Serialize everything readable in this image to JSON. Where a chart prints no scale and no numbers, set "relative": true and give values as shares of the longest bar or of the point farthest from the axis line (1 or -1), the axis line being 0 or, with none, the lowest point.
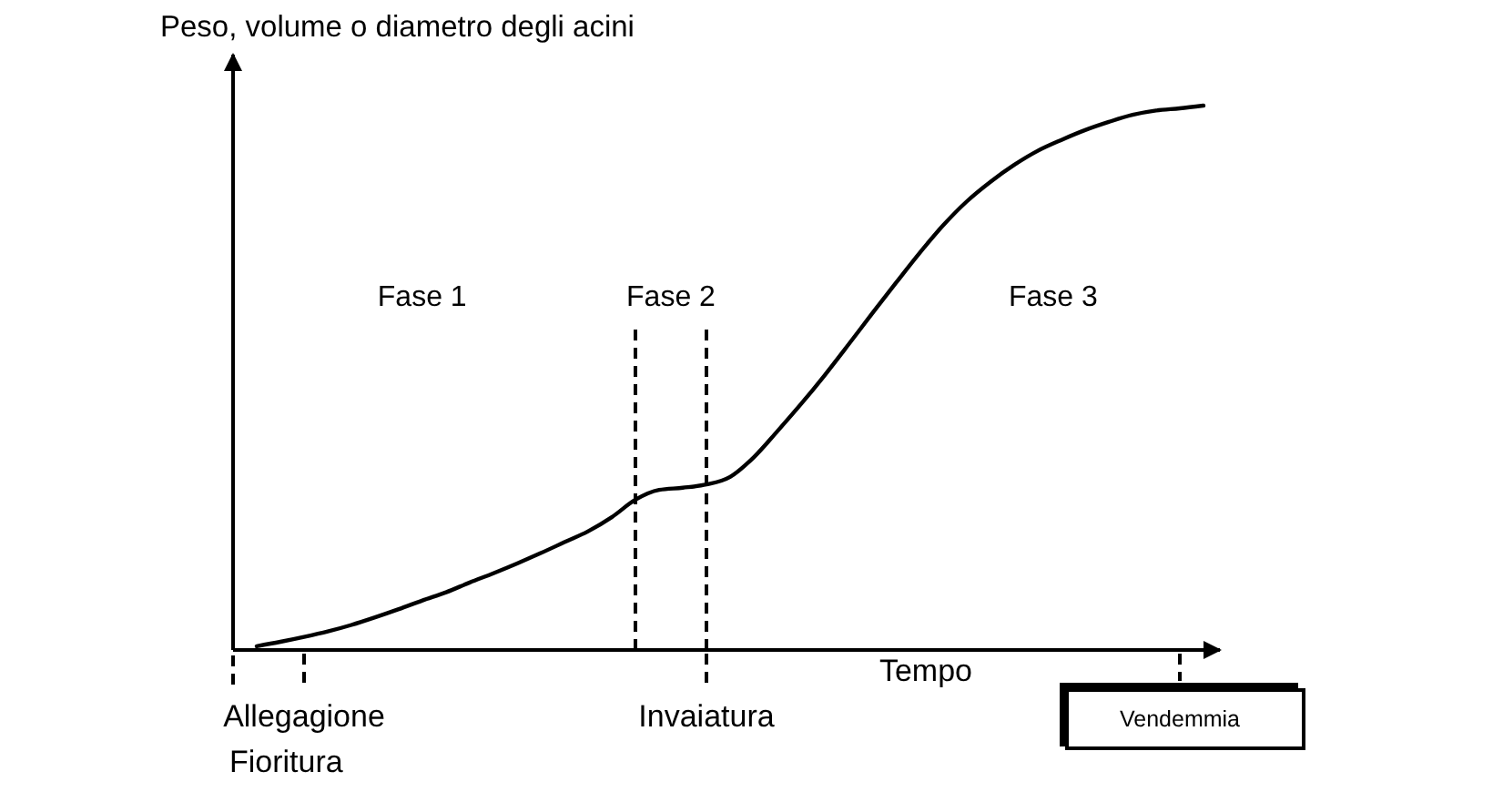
{
  "chart_data": {
    "type": "line",
    "relative": true,
    "ylabel": "Peso, volume o diametro degli acini",
    "xlabel": "Tempo",
    "categories": [
      null,
      null,
      null,
      "Allegagione",
      null,
      null,
      null,
      null,
      null,
      null,
      null,
      null,
      null,
      null,
      null,
      null,
      null,
      null,
      null,
      null,
      "Invaiatura",
      null,
      null,
      null,
      null,
      null,
      null,
      null,
      null,
      null,
      null,
      null,
      null,
      null,
      null,
      null,
      null,
      null,
      null,
      null,
      "Vendemmia",
      null
    ],
    "series": [
      {
        "color": "#000000",
        "values": [
          null,
          0.007,
          0.015,
          0.024,
          0.034,
          0.046,
          0.06,
          0.075,
          0.091,
          0.106,
          0.124,
          0.141,
          0.159,
          0.178,
          0.198,
          0.218,
          0.244,
          0.276,
          0.294,
          0.298,
          0.304,
          0.318,
          0.354,
          0.402,
          0.452,
          0.505,
          0.561,
          0.618,
          0.674,
          0.729,
          0.78,
          0.824,
          0.86,
          0.891,
          0.917,
          0.937,
          0.955,
          0.97,
          0.983,
          0.991,
          0.995,
          1
        ]
      }
    ],
    "annotations": [
      "Fase 1",
      "Fase 2",
      "Fase 3",
      "Fioritura"
    ]
  }
}
